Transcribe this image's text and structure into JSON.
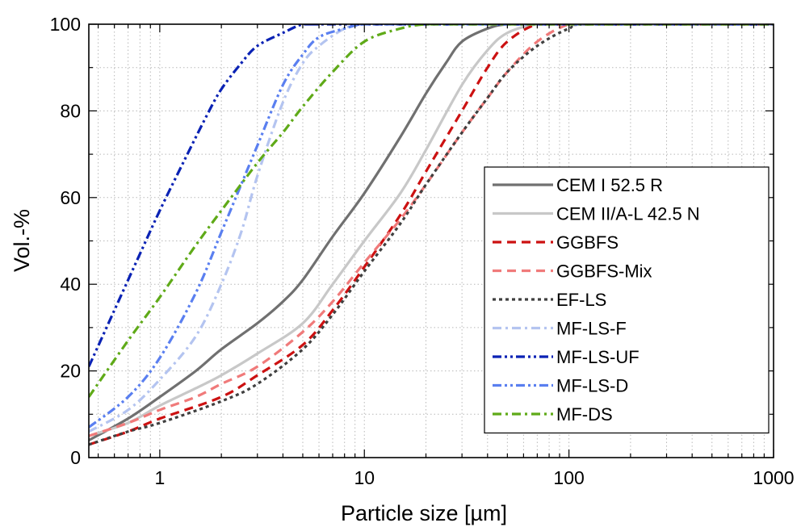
{
  "chart_data": {
    "type": "line",
    "xlabel": "Particle size [µm]",
    "ylabel": "Vol.-%",
    "xscale": "log",
    "xlim": [
      0.45,
      1000
    ],
    "ylim": [
      0,
      100
    ],
    "x_ticks": [
      "1",
      "10",
      "100",
      "1000"
    ],
    "y_ticks": [
      "0",
      "20",
      "40",
      "60",
      "80",
      "100"
    ],
    "grid": "minor-dotted",
    "legend_position": "bottom-right",
    "series": [
      {
        "name": "CEM I 52.5 R",
        "color": "#707070",
        "dash": "solid",
        "x": [
          0.45,
          0.7,
          1,
          1.5,
          2,
          3,
          4,
          5,
          7,
          10,
          15,
          20,
          25,
          30,
          40,
          50,
          70,
          100
        ],
        "y": [
          4,
          9,
          14,
          20,
          25,
          31,
          36,
          41,
          51,
          61,
          74,
          84,
          91,
          96,
          99,
          100,
          100,
          100
        ]
      },
      {
        "name": "CEM II/A-L 42.5 N",
        "color": "#c8c8c8",
        "dash": "solid",
        "x": [
          0.45,
          0.7,
          1,
          1.5,
          2,
          3,
          5,
          7,
          10,
          15,
          20,
          30,
          40,
          50,
          70,
          100
        ],
        "y": [
          5,
          8,
          12,
          16,
          19,
          24,
          31,
          40,
          50,
          61,
          71,
          86,
          94,
          98,
          100,
          100
        ]
      },
      {
        "name": "GGBFS",
        "color": "#cc1111",
        "dash": "dashed",
        "x": [
          0.45,
          0.7,
          1,
          2,
          3,
          5,
          7,
          10,
          15,
          20,
          30,
          40,
          50,
          70,
          100
        ],
        "y": [
          3,
          6,
          9,
          14,
          19,
          26,
          34,
          44,
          56,
          66,
          80,
          90,
          96,
          100,
          100
        ]
      },
      {
        "name": "GGBFS-Mix",
        "color": "#f07a7a",
        "dash": "dashed",
        "x": [
          0.45,
          0.7,
          1,
          1.5,
          2,
          3,
          5,
          7,
          10,
          15,
          20,
          30,
          40,
          50,
          70,
          100,
          130
        ],
        "y": [
          5,
          8,
          11,
          14,
          17,
          21,
          29,
          36,
          45,
          55,
          63,
          75,
          83,
          89,
          96,
          100,
          100
        ]
      },
      {
        "name": "EF-LS",
        "color": "#404040",
        "dash": "dotted",
        "x": [
          0.45,
          0.7,
          1,
          2,
          3,
          5,
          7,
          10,
          15,
          20,
          30,
          40,
          50,
          70,
          100,
          130
        ],
        "y": [
          3,
          6,
          8,
          13,
          17,
          25,
          33,
          43,
          54,
          63,
          75,
          83,
          89,
          95,
          99,
          100
        ]
      },
      {
        "name": "MF-LS-F",
        "color": "#b4c4f0",
        "dash": "dashdot",
        "x": [
          0.45,
          0.7,
          1,
          1.5,
          2,
          2.5,
          3,
          4,
          5,
          6,
          8,
          10,
          15,
          20
        ],
        "y": [
          6,
          11,
          18,
          28,
          40,
          52,
          65,
          82,
          91,
          95,
          99,
          100,
          100,
          100
        ]
      },
      {
        "name": "MF-LS-UF",
        "color": "#0a22b4",
        "dash": "dashdotdot",
        "x": [
          0.45,
          0.6,
          0.8,
          1,
          1.3,
          1.7,
          2,
          2.5,
          3,
          4,
          5,
          6,
          8
        ],
        "y": [
          21,
          34,
          47,
          57,
          68,
          79,
          85,
          91,
          95,
          98,
          100,
          100,
          100
        ]
      },
      {
        "name": "MF-LS-D",
        "color": "#5a7ff0",
        "dash": "dashdotdot",
        "x": [
          0.45,
          0.7,
          1,
          1.5,
          2,
          2.5,
          3,
          4,
          5,
          6,
          8,
          10,
          15
        ],
        "y": [
          7,
          14,
          23,
          38,
          52,
          63,
          72,
          86,
          93,
          97,
          99,
          100,
          100
        ]
      },
      {
        "name": "MF-DS",
        "color": "#5faa18",
        "dash": "dashdot",
        "x": [
          0.45,
          0.7,
          1,
          1.5,
          2,
          3,
          4,
          5,
          7,
          10,
          15,
          20,
          30
        ],
        "y": [
          14,
          27,
          37,
          49,
          57,
          68,
          75,
          81,
          89,
          96,
          99,
          100,
          100
        ]
      }
    ]
  }
}
